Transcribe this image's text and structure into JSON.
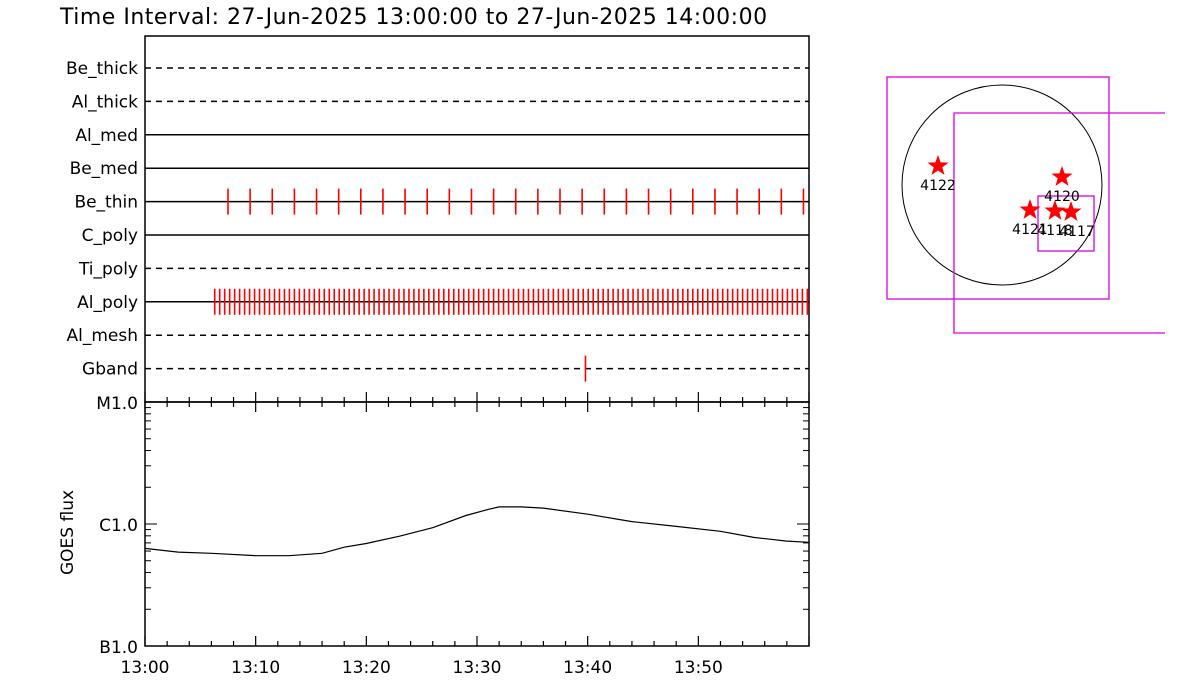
{
  "title": "Time Interval: 27-Jun-2025 13:00:00 to 27-Jun-2025 14:00:00",
  "chart_data": [
    {
      "type": "timeline",
      "x_range": [
        "13:00",
        "14:00"
      ],
      "filters": [
        {
          "name": "Be_thick",
          "style": "dashed",
          "events": []
        },
        {
          "name": "Al_thick",
          "style": "dashed",
          "events": []
        },
        {
          "name": "Al_med",
          "style": "solid",
          "events": []
        },
        {
          "name": "Be_med",
          "style": "solid",
          "events": []
        },
        {
          "name": "Be_thin",
          "style": "solid",
          "events_start": 7.5,
          "events_end": 60,
          "events_step": 2.0
        },
        {
          "name": "C_poly",
          "style": "solid",
          "events": []
        },
        {
          "name": "Ti_poly",
          "style": "dashed",
          "events": []
        },
        {
          "name": "Al_poly",
          "style": "solid",
          "events_start": 6.3,
          "events_end": 60,
          "events_step": 0.45
        },
        {
          "name": "Al_mesh",
          "style": "dashed",
          "events": []
        },
        {
          "name": "Gband",
          "style": "dashed",
          "events": [
            39.8
          ]
        }
      ],
      "event_color": "#ff0000"
    },
    {
      "type": "line",
      "ylabel": "GOES flux",
      "y_ticks": [
        "M1.0",
        "C1.0",
        "B1.0"
      ],
      "ylim_log": [
        -7,
        -5
      ],
      "x_ticks": [
        "13:00",
        "13:10",
        "13:20",
        "13:30",
        "13:40",
        "13:50"
      ],
      "series": [
        {
          "x_minutes": [
            0,
            3,
            6,
            10,
            13,
            16,
            18,
            20,
            23,
            26,
            29,
            31,
            32,
            33,
            34,
            36,
            40,
            44,
            48,
            52,
            55,
            58,
            60
          ],
          "y_log": [
            -6.2,
            -6.23,
            -6.24,
            -6.26,
            -6.26,
            -6.24,
            -6.19,
            -6.16,
            -6.1,
            -6.03,
            -5.93,
            -5.88,
            -5.86,
            -5.86,
            -5.86,
            -5.87,
            -5.92,
            -5.98,
            -6.02,
            -6.06,
            -6.11,
            -6.14,
            -6.15
          ]
        }
      ]
    }
  ],
  "solar_map": {
    "regions": [
      {
        "label": "4122"
      },
      {
        "label": "4120"
      },
      {
        "label": "4121"
      },
      {
        "label": "4118"
      },
      {
        "label": "4117"
      }
    ],
    "box_color": "#dd00dd",
    "star_color": "#ff0000"
  }
}
